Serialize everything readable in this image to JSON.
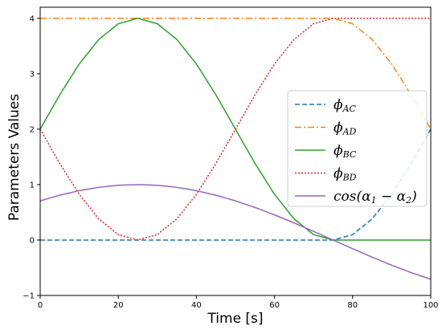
{
  "chart_data": {
    "type": "line",
    "xlabel": "Time [s]",
    "ylabel": "Parameters Values",
    "xlim": [
      0,
      100
    ],
    "ylim": [
      -1,
      4.2
    ],
    "xticks": [
      0,
      20,
      40,
      60,
      80,
      100
    ],
    "yticks": [
      -1,
      0,
      1,
      2,
      3,
      4
    ],
    "grid": false,
    "legend_position": "center-right",
    "series": [
      {
        "name": "φ_AC",
        "legend_main": "ϕ",
        "legend_sub": "AC",
        "color": "#1f77b4",
        "style": "dashed",
        "x": [
          0,
          5,
          10,
          15,
          20,
          25,
          30,
          35,
          40,
          45,
          50,
          55,
          60,
          65,
          70,
          75,
          80,
          85,
          90,
          95,
          100
        ],
        "y": [
          0,
          0,
          0,
          0,
          0,
          0,
          0,
          0,
          0,
          0,
          0,
          0,
          0,
          0,
          0,
          0,
          0.0979,
          0.382,
          0.824,
          1.382,
          2.0
        ]
      },
      {
        "name": "φ_AD",
        "legend_main": "ϕ",
        "legend_sub": "AD",
        "color": "#ff7f0e",
        "style": "dashdot",
        "x": [
          0,
          5,
          10,
          15,
          20,
          25,
          30,
          35,
          40,
          45,
          50,
          55,
          60,
          65,
          70,
          75,
          80,
          85,
          90,
          95,
          100
        ],
        "y": [
          4,
          4,
          4,
          4,
          4,
          4,
          4,
          4,
          4,
          4,
          4,
          4,
          4,
          4,
          4,
          4,
          3.902,
          3.618,
          3.176,
          2.618,
          2.0
        ]
      },
      {
        "name": "φ_BC",
        "legend_main": "ϕ",
        "legend_sub": "BC",
        "color": "#2ca02c",
        "style": "solid",
        "x": [
          0,
          5,
          10,
          15,
          20,
          25,
          30,
          35,
          40,
          45,
          50,
          55,
          60,
          65,
          70,
          75,
          80,
          85,
          90,
          95,
          100
        ],
        "y": [
          2.0,
          2.618,
          3.176,
          3.618,
          3.902,
          4.0,
          3.902,
          3.618,
          3.176,
          2.618,
          2.0,
          1.382,
          0.824,
          0.382,
          0.098,
          0,
          0,
          0,
          0,
          0,
          0
        ]
      },
      {
        "name": "φ_BD",
        "legend_main": "ϕ",
        "legend_sub": "BD",
        "color": "#d62728",
        "style": "dotted",
        "x": [
          0,
          5,
          10,
          15,
          20,
          25,
          30,
          35,
          40,
          45,
          50,
          55,
          60,
          65,
          70,
          75,
          80,
          85,
          90,
          95,
          100
        ],
        "y": [
          2.0,
          1.382,
          0.824,
          0.382,
          0.098,
          0.0,
          0.098,
          0.382,
          0.824,
          1.382,
          2.0,
          2.618,
          3.176,
          3.618,
          3.902,
          4.0,
          4,
          4,
          4,
          4,
          4
        ]
      },
      {
        "name": "cos(α1 − α2)",
        "legend_main": "cos(α",
        "legend_sub": "1",
        "legend_mid": " − α",
        "legend_sub2": "2",
        "legend_end": ")",
        "color": "#9467bd",
        "style": "solid",
        "x": [
          0,
          5,
          10,
          15,
          20,
          25,
          30,
          35,
          40,
          45,
          50,
          55,
          60,
          65,
          70,
          75,
          80,
          85,
          90,
          95,
          100
        ],
        "y": [
          0.707,
          0.809,
          0.891,
          0.951,
          0.988,
          1.0,
          0.988,
          0.951,
          0.891,
          0.809,
          0.707,
          0.588,
          0.454,
          0.309,
          0.156,
          0.0,
          -0.156,
          -0.309,
          -0.454,
          -0.588,
          -0.707
        ]
      }
    ]
  }
}
